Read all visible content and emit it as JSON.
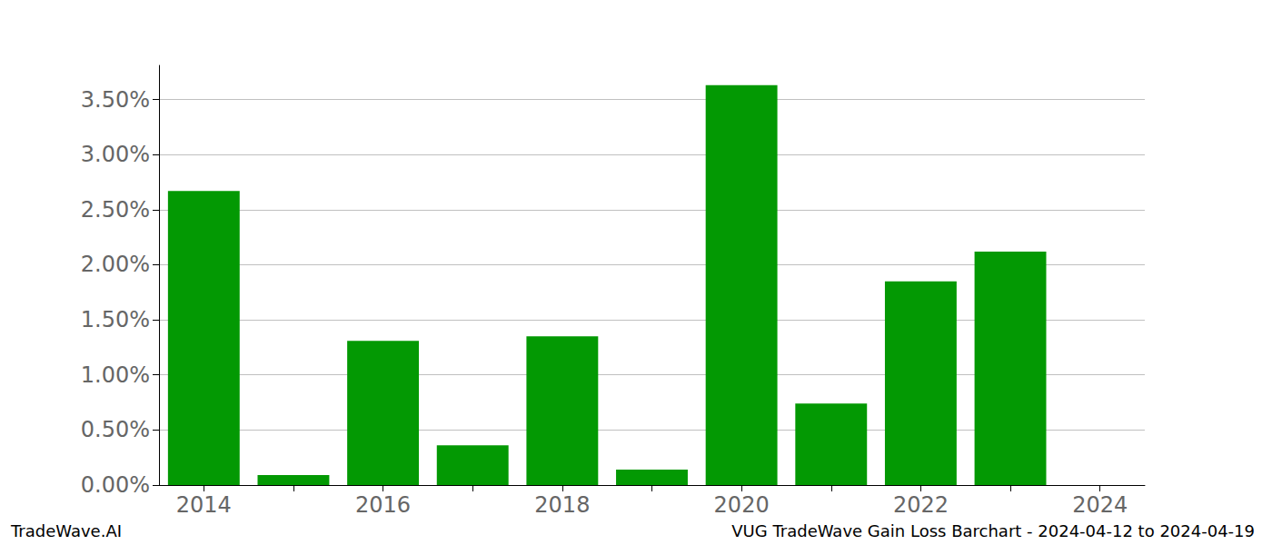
{
  "chart_data": {
    "type": "bar",
    "title": "VUG TradeWave Gain Loss Barchart - 2024-04-12 to 2024-04-19",
    "annotations": [
      "TradeWave.AI"
    ],
    "categories": [
      "2014",
      null,
      "2016",
      null,
      "2018",
      null,
      "2020",
      null,
      "2022",
      null,
      "2024"
    ],
    "values": [
      2.67,
      0.09,
      1.31,
      0.36,
      1.35,
      0.14,
      3.63,
      0.74,
      1.85,
      2.12,
      0
    ],
    "color": "#039903",
    "ylim": [
      0,
      3.81
    ],
    "yticks": [
      {
        "value": 0,
        "label": "0.00%"
      },
      {
        "value": 0.5,
        "label": "0.50%"
      },
      {
        "value": 1,
        "label": "1.00%"
      },
      {
        "value": 1.5,
        "label": "1.50%"
      },
      {
        "value": 2,
        "label": "2.00%"
      },
      {
        "value": 2.5,
        "label": "2.50%"
      },
      {
        "value": 3,
        "label": "3.00%"
      },
      {
        "value": 3.5,
        "label": "3.50%"
      }
    ],
    "grid": true
  }
}
